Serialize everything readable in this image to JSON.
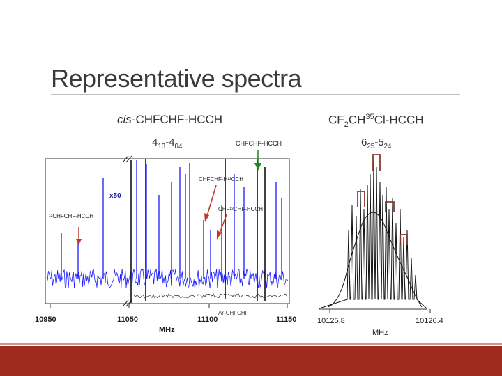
{
  "slide": {
    "title": "Representative spectra"
  },
  "left_panel": {
    "prefix": "cis",
    "molecule": "-CHFCHF-HCCH",
    "transition": {
      "j1": "4",
      "s1": "13",
      "dash": "-",
      "j2": "4",
      "s2": "04"
    },
    "peak_labels": {
      "main": "CHFCHF-HCCH",
      "h13ccH": "CHFCHF-H¹³CCH",
      "chf13chf": "CHF¹³CHF-HCCH",
      "c13chfchf": "¹³CHFCHF-HCCH",
      "ar_complex": "Ar-CHFCHF",
      "scale": "x50",
      "bottom_axis_label": "MHz"
    },
    "axis_ticks": [
      "10950",
      "11050",
      "11100",
      "11150"
    ]
  },
  "right_panel": {
    "molecule": {
      "p1": "CF",
      "s1": "2",
      "p2": "CH",
      "sup": "35",
      "p3": "Cl-HCCH"
    },
    "transition": {
      "j1": "6",
      "s1": "25",
      "dash": "-",
      "j2": "5",
      "s2": "24"
    },
    "axis_ticks": [
      "10125.8",
      "10126.4"
    ],
    "axis_label": "MHz"
  },
  "colors": {
    "accent_bar": "#9e2b1e",
    "spectrum_blue": "#1a1aff",
    "arrow_red": "#c0392b",
    "arrow_green": "#1a8a1a",
    "bracket_brown": "#8b3a2e"
  }
}
